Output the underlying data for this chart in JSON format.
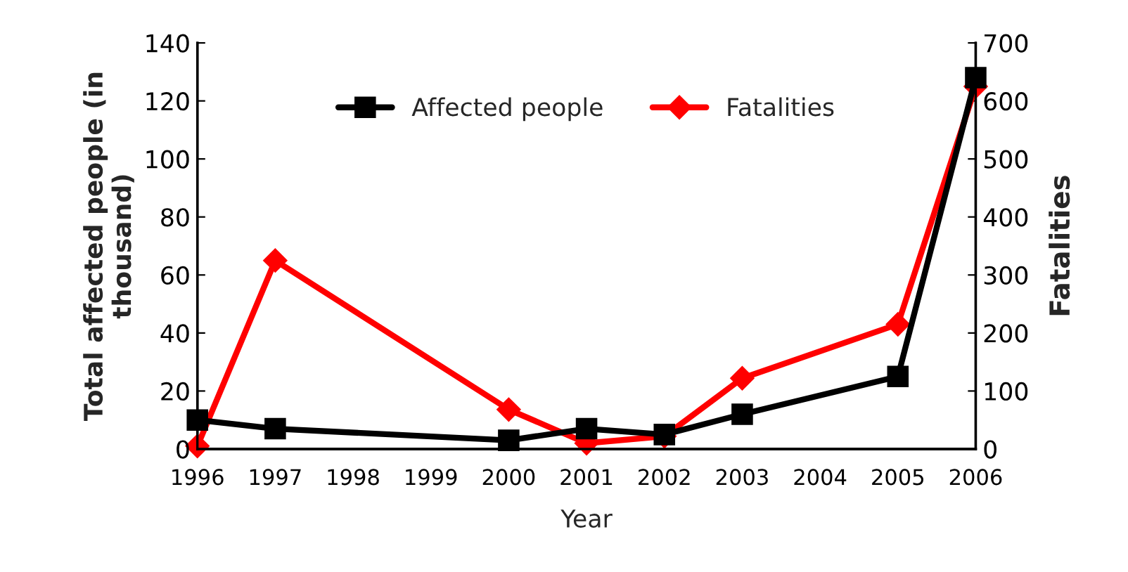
{
  "chart_data": {
    "type": "line",
    "xlabel": "Year",
    "ylabel": "Total affected people (in thousand)",
    "y2label": "Fatalities",
    "x": [
      1996,
      1997,
      2000,
      2001,
      2002,
      2003,
      2005,
      2006
    ],
    "series": [
      {
        "name": "Affected people",
        "color": "#000000",
        "marker": "square",
        "values": [
          10,
          7,
          3,
          7,
          5,
          12,
          25,
          128
        ]
      },
      {
        "name": "Fatalities",
        "color": "#ff0000",
        "marker": "diamond",
        "axis": "y2",
        "values": [
          5,
          325,
          68,
          10,
          22,
          122,
          215,
          625
        ]
      }
    ],
    "xlim": [
      1996,
      2006
    ],
    "xticks": [
      1996,
      1997,
      1998,
      1999,
      2000,
      2001,
      2002,
      2003,
      2004,
      2005,
      2006
    ],
    "ylim": [
      0,
      140
    ],
    "yticks": [
      0,
      20,
      40,
      60,
      80,
      100,
      120,
      140
    ],
    "y2lim": [
      0,
      700
    ],
    "y2ticks": [
      0,
      100,
      200,
      300,
      400,
      500,
      600,
      700
    ],
    "grid": false,
    "legend": "top",
    "line_style": "solid"
  }
}
